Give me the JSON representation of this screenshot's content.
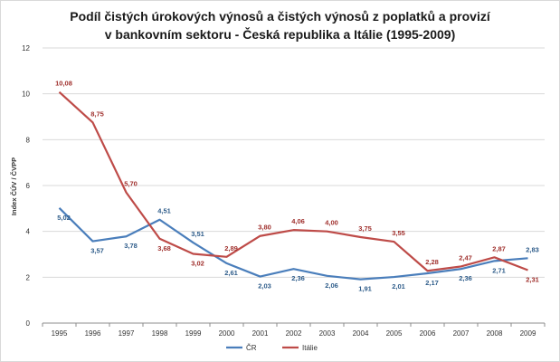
{
  "chart_data": {
    "type": "line",
    "title_line1": "Podíl čistých úrokových výnosů a čistých výnosů z poplatků a provizí",
    "title_line2": "v bankovním sektoru - Česká republika a Itálie (1995-2009)",
    "ylabel": "Index ČÚV / ČVPP",
    "xlabel": "",
    "ylim": [
      0,
      12
    ],
    "yticks": [
      "0",
      "2",
      "4",
      "6",
      "8",
      "10",
      "12"
    ],
    "categories": [
      "1995",
      "1996",
      "1997",
      "1998",
      "1999",
      "2000",
      "2001",
      "2002",
      "2003",
      "2004",
      "2005",
      "2006",
      "2007",
      "2008",
      "2009"
    ],
    "grid": true,
    "legend_position": "bottom",
    "series": [
      {
        "name": "ČR",
        "color": "#4a7ebb",
        "values": [
          5.02,
          3.57,
          3.78,
          4.51,
          3.51,
          2.61,
          2.03,
          2.36,
          2.06,
          1.91,
          2.01,
          2.17,
          2.36,
          2.71,
          2.83
        ],
        "labels": [
          "5,02",
          "3,57",
          "3,78",
          "4,51",
          "3,51",
          "2,61",
          "2,03",
          "2,36",
          "2,06",
          "1,91",
          "2,01",
          "2,17",
          "2,36",
          "2,71",
          "2,83"
        ]
      },
      {
        "name": "Itálie",
        "color": "#be4b48",
        "values": [
          10.08,
          8.75,
          5.7,
          3.68,
          3.02,
          2.89,
          3.8,
          4.06,
          4.0,
          3.75,
          3.55,
          2.28,
          2.47,
          2.87,
          2.31
        ],
        "labels": [
          "10,08",
          "8,75",
          "5,70",
          "3,68",
          "3,02",
          "2,89",
          "3,80",
          "4,06",
          "4,00",
          "3,75",
          "3,55",
          "2,28",
          "2,47",
          "2,87",
          "2,31"
        ]
      }
    ]
  }
}
